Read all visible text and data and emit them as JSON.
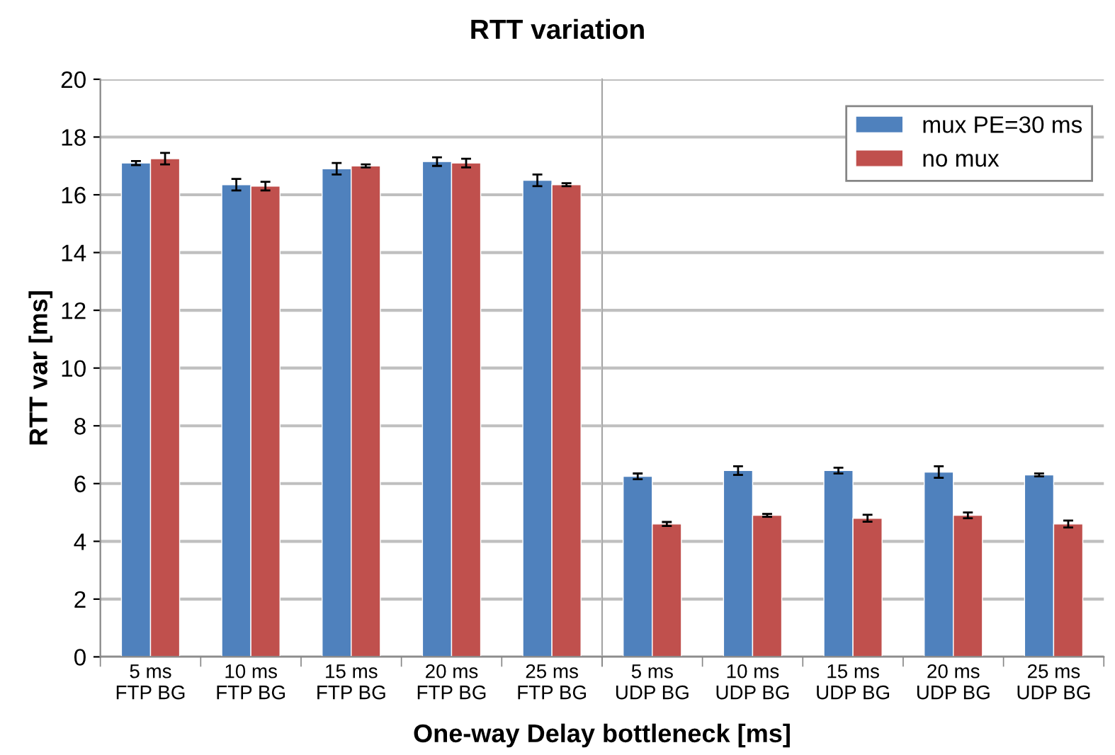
{
  "chart_data": [
    {
      "type": "bar",
      "title": "RTT variation",
      "xlabel": "One-way Delay bottleneck [ms]",
      "ylabel": "RTT var [ms]",
      "categories": [
        "5 ms\nFTP BG",
        "10 ms\nFTP BG",
        "15 ms\nFTP BG",
        "20 ms\nFTP BG",
        "25 ms\nFTP BG"
      ],
      "series": [
        {
          "name": "mux PE=30 ms",
          "color": "#4f81bd",
          "values": [
            17.1,
            16.35,
            16.9,
            17.15,
            16.5
          ],
          "errors": [
            0.07,
            0.2,
            0.2,
            0.15,
            0.2
          ]
        },
        {
          "name": "no mux",
          "color": "#c0504d",
          "values": [
            17.25,
            16.3,
            17.0,
            17.1,
            16.35
          ],
          "errors": [
            0.2,
            0.15,
            0.05,
            0.15,
            0.05
          ]
        }
      ],
      "ylim": [
        0,
        20
      ],
      "yticks": [
        0,
        2,
        4,
        6,
        8,
        10,
        12,
        14,
        16,
        18,
        20
      ],
      "grid": "y",
      "legend": "top right"
    },
    {
      "type": "bar",
      "categories": [
        "5 ms\nUDP BG",
        "10 ms\nUDP BG",
        "15 ms\nUDP BG",
        "20 ms\nUDP BG",
        "25 ms\nUDP BG"
      ],
      "series": [
        {
          "color": "#4f81bd",
          "values": [
            6.25,
            6.45,
            6.45,
            6.4,
            6.3
          ],
          "errors": [
            0.1,
            0.15,
            0.1,
            0.2,
            0.05
          ]
        },
        {
          "color": "#c0504d",
          "values": [
            4.6,
            4.9,
            4.8,
            4.9,
            4.6
          ],
          "errors": [
            0.07,
            0.05,
            0.12,
            0.1,
            0.12
          ]
        }
      ],
      "ylim": [
        0,
        20
      ],
      "yticks": [
        0,
        2,
        4,
        6,
        8,
        10,
        12,
        14,
        16,
        18,
        20
      ],
      "grid": "y",
      "tick_labels": "x"
    }
  ]
}
